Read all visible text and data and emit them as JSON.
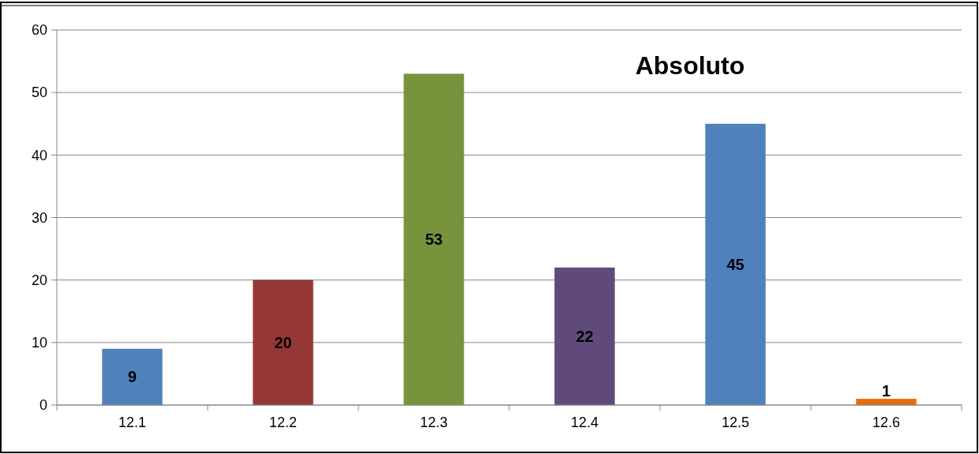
{
  "chart_data": {
    "type": "bar",
    "title": "Absoluto",
    "categories": [
      "12.1",
      "12.2",
      "12.3",
      "12.4",
      "12.5",
      "12.6"
    ],
    "values": [
      9,
      20,
      53,
      22,
      45,
      1
    ],
    "colors": [
      "#4f81bd",
      "#953735",
      "#77933c",
      "#604a7b",
      "#4f81bd",
      "#e46c0a"
    ],
    "ylim": [
      0,
      60
    ],
    "yticks": [
      0,
      10,
      20,
      30,
      40,
      50,
      60
    ],
    "grid": "y",
    "data_labels": true
  }
}
